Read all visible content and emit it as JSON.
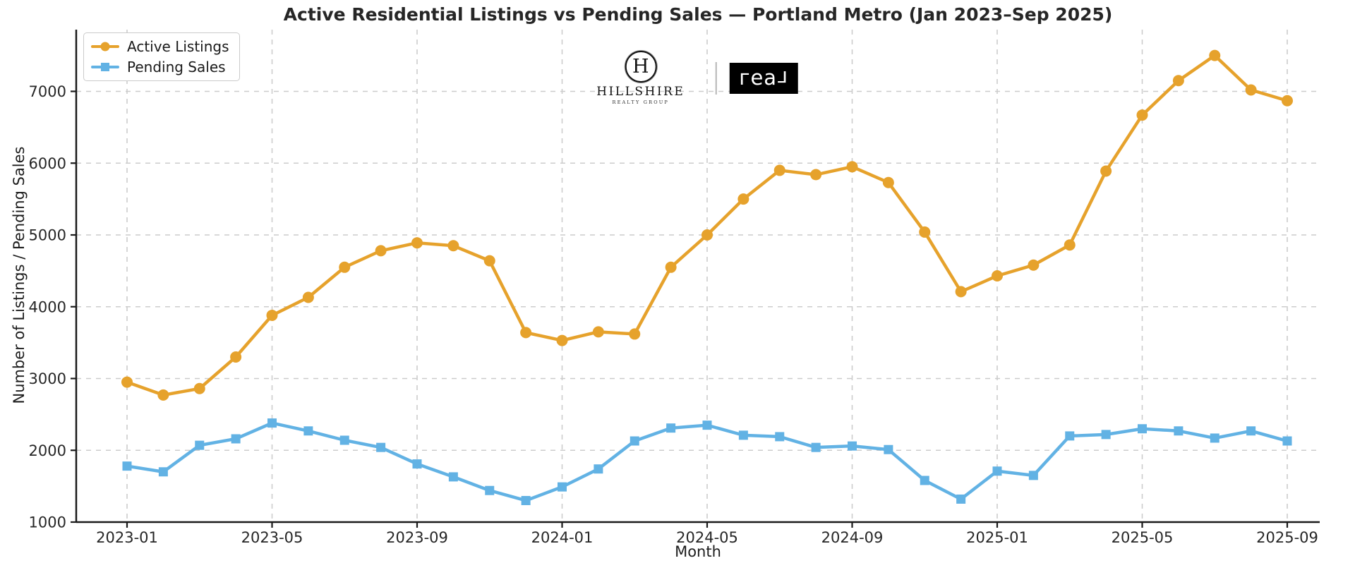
{
  "title": "Active Residential Listings vs Pending Sales — Portland Metro (Jan 2023–Sep 2025)",
  "colors": {
    "active_listings": "#E6A22C",
    "pending_sales": "#62B2E4",
    "grid": "#cccccc",
    "spine": "#1a1a1a",
    "text": "#262626"
  },
  "legend": {
    "items": [
      {
        "label": "Active Listings",
        "marker": "circle",
        "color": "#E6A22C"
      },
      {
        "label": "Pending Sales",
        "marker": "square",
        "color": "#62B2E4"
      }
    ]
  },
  "logo": {
    "hillshire_initial": "H",
    "hillshire_name": "HILLSHIRE",
    "hillshire_sub": "REALTY GROUP",
    "real_glyphs": [
      "г",
      "е",
      "а",
      "г"
    ]
  },
  "chart_data": {
    "type": "line",
    "title": "Active Residential Listings vs Pending Sales — Portland Metro (Jan 2023–Sep 2025)",
    "xlabel": "Month",
    "ylabel": "Number of Listings / Pending Sales",
    "x": [
      "2023-01",
      "2023-02",
      "2023-03",
      "2023-04",
      "2023-05",
      "2023-06",
      "2023-07",
      "2023-08",
      "2023-09",
      "2023-10",
      "2023-11",
      "2023-12",
      "2024-01",
      "2024-02",
      "2024-03",
      "2024-04",
      "2024-05",
      "2024-06",
      "2024-07",
      "2024-08",
      "2024-09",
      "2024-10",
      "2024-11",
      "2024-12",
      "2025-01",
      "2025-02",
      "2025-03",
      "2025-04",
      "2025-05",
      "2025-06",
      "2025-07",
      "2025-08",
      "2025-09"
    ],
    "series": [
      {
        "name": "Active Listings",
        "color": "#E6A22C",
        "marker": "circle",
        "values": [
          2950,
          2770,
          2860,
          3300,
          3880,
          4130,
          4550,
          4780,
          4890,
          4850,
          4640,
          3640,
          3530,
          3650,
          3620,
          4550,
          5000,
          5500,
          5900,
          5840,
          5950,
          5730,
          5040,
          4210,
          4430,
          4580,
          4860,
          5890,
          6670,
          7150,
          7500,
          7020,
          6870
        ]
      },
      {
        "name": "Pending Sales",
        "color": "#62B2E4",
        "marker": "square",
        "values": [
          1780,
          1700,
          2070,
          2160,
          2380,
          2270,
          2140,
          2040,
          1810,
          1630,
          1440,
          1300,
          1490,
          1740,
          2130,
          2310,
          2350,
          2210,
          2190,
          2040,
          2060,
          2010,
          1580,
          1320,
          1710,
          1650,
          2200,
          2220,
          2300,
          2270,
          2170,
          2270,
          2130
        ]
      }
    ],
    "ylim": [
      1000,
      7860
    ],
    "yticks": [
      1000,
      2000,
      3000,
      4000,
      5000,
      6000,
      7000
    ],
    "xtick_indices": [
      0,
      4,
      8,
      12,
      16,
      20,
      24,
      28,
      32
    ],
    "grid": true,
    "grid_style": "dashed",
    "legend_position": "upper left"
  }
}
